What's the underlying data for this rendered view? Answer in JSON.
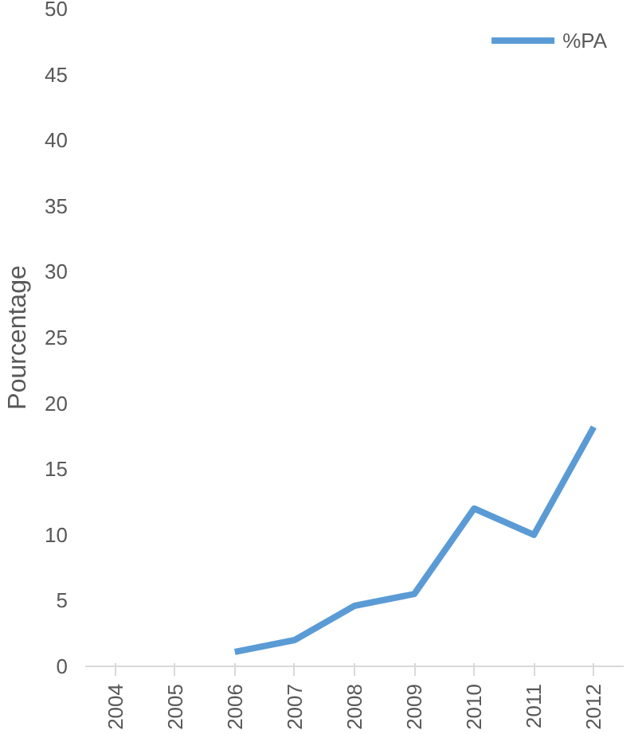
{
  "chart_data": {
    "type": "line",
    "ylabel": "Pourcentage",
    "categories": [
      "2004",
      "2005",
      "2006",
      "2007",
      "2008",
      "2009",
      "2010",
      "2011",
      "2012"
    ],
    "series": [
      {
        "name": "%PA",
        "color": "#5b9bd5",
        "values": [
          null,
          null,
          1.1,
          2.0,
          4.6,
          5.5,
          12.0,
          10.0,
          18.2
        ]
      }
    ],
    "ylim": [
      0,
      50
    ],
    "yticks": [
      0,
      5,
      10,
      15,
      20,
      25,
      30,
      35,
      40,
      45,
      50
    ],
    "grid": false,
    "legend": "top right",
    "marker": "none",
    "line_style": "solid"
  }
}
